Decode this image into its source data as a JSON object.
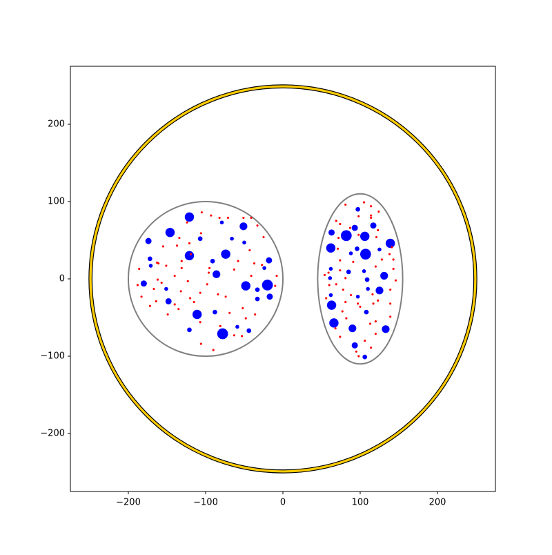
{
  "chart_data": {
    "type": "scatter",
    "xlim": [
      -275,
      275
    ],
    "ylim": [
      -275,
      275
    ],
    "xticks": [
      {
        "value": -200,
        "label": "−200"
      },
      {
        "value": -100,
        "label": "−100"
      },
      0,
      100,
      200
    ],
    "yticks": [
      {
        "value": -200,
        "label": "−200"
      },
      {
        "value": -100,
        "label": "−100"
      },
      0,
      100,
      200
    ],
    "shapes": [
      {
        "kind": "ring",
        "center": [
          0,
          0
        ],
        "radii": [
          247,
          251
        ],
        "fill": "#ffcc00",
        "edge": "#000000"
      },
      {
        "kind": "ellipse",
        "center": [
          -100,
          0
        ],
        "width": 200,
        "height": 200,
        "edge": "#808080"
      },
      {
        "kind": "ellipse",
        "center": [
          100,
          0
        ],
        "width": 110,
        "height": 220,
        "edge": "#808080"
      }
    ],
    "series": [
      {
        "color": "#0000ff",
        "x": [
          -121,
          -146,
          -174,
          -172,
          -171,
          -180,
          -151,
          -148,
          -121,
          -107,
          -121,
          -111,
          -91,
          -86,
          -74,
          -79,
          -66,
          -51,
          -50,
          -18,
          -24,
          -20,
          -48,
          -33,
          -33,
          -17,
          -88,
          -59,
          -78,
          -44,
          97,
          63,
          93,
          117,
          82,
          106,
          139,
          62,
          96,
          88,
          107,
          125,
          62,
          85,
          105,
          131,
          61,
          109,
          110,
          125,
          62,
          97,
          63,
          108,
          66,
          90,
          133,
          93,
          106
        ],
        "values": [
          80,
          60,
          49,
          26,
          17,
          -6,
          -13,
          -29,
          30,
          52,
          -66,
          -46,
          23,
          6,
          32,
          73,
          52,
          68,
          47,
          24,
          14,
          -8,
          -9,
          -14,
          -26,
          -23,
          -43,
          -62,
          -71,
          -67,
          90,
          60,
          66,
          69,
          56,
          55,
          46,
          40,
          39,
          33,
          32,
          38,
          13,
          9,
          10,
          4,
          1,
          -1,
          -13,
          -15,
          -21,
          -23,
          -34,
          -43,
          -57,
          -64,
          -65,
          -86,
          -101
        ],
        "sizes": [
          6,
          6,
          4,
          3,
          2.5,
          4,
          2.5,
          4,
          6,
          3,
          3,
          6,
          3,
          5,
          6,
          2.5,
          2.5,
          5,
          2.5,
          4,
          2.5,
          7,
          6,
          3,
          3,
          4,
          3,
          2.5,
          7,
          3,
          3,
          4,
          4,
          4,
          7,
          6,
          6,
          6,
          3,
          2.5,
          7,
          2.5,
          2.5,
          3,
          2.5,
          5,
          2.5,
          3,
          2.5,
          5,
          2.5,
          2.5,
          6,
          3,
          6,
          5,
          5,
          4,
          3
        ]
      },
      {
        "color": "#ff0000",
        "size": 1.4,
        "x": [
          -105,
          -93,
          -82,
          -71,
          -51,
          -41,
          -33,
          -124,
          -106,
          -134,
          -121,
          -155,
          -137,
          -119,
          -131,
          -163,
          -95,
          -151,
          -161,
          -131,
          -96,
          -140,
          -123,
          -98,
          -63,
          -58,
          -37,
          -162,
          -167,
          -157,
          -132,
          -120,
          -84,
          -74,
          -107,
          -52,
          -69,
          -107,
          -81,
          -149,
          -135,
          -164,
          -183,
          -172,
          -188,
          -186,
          -140,
          -10,
          -8,
          -41,
          -27,
          -43,
          -25,
          -36,
          -115,
          -63,
          -106,
          -90,
          -48,
          -53,
          81,
          105,
          114,
          124,
          114,
          69,
          98,
          114,
          74,
          87,
          123,
          121,
          72,
          98,
          71,
          141,
          143,
          128,
          138,
          74,
          91,
          120,
          143,
          74,
          59,
          54,
          81,
          69,
          60,
          78,
          88,
          81,
          56,
          116,
          139,
          146,
          123,
          97,
          100,
          117,
          139,
          139,
          120,
          113,
          77,
          82,
          68,
          74,
          120,
          106,
          114,
          95,
          98
        ],
        "values": [
          86,
          82,
          79,
          79,
          79,
          79,
          69,
          73,
          59,
          53,
          46,
          42,
          43,
          32,
          23,
          21,
          14,
          17,
          20,
          14,
          8,
          4,
          -3,
          -7,
          12,
          23,
          20,
          -1,
          -13,
          -5,
          -16,
          -25,
          -20,
          -23,
          -18,
          -38,
          -44,
          -56,
          -61,
          -46,
          -39,
          -29,
          -23,
          -35,
          -8,
          13,
          -33,
          -9,
          4,
          4,
          18,
          37,
          54,
          -46,
          -30,
          -73,
          -84,
          -92,
          -51,
          -74,
          96,
          99,
          94,
          87,
          82,
          75,
          81,
          79,
          71,
          66,
          63,
          54,
          53,
          57,
          39,
          41,
          25,
          25,
          32,
          24,
          22,
          16,
          13,
          11,
          8,
          5,
          1,
          -7,
          -8,
          -14,
          -21,
          -30,
          -25,
          -20,
          -14,
          -2,
          -28,
          -32,
          -36,
          -32,
          -32,
          -49,
          -55,
          -58,
          -42,
          -51,
          -64,
          -75,
          -71,
          -80,
          -89,
          -94,
          -100
        ]
      }
    ]
  }
}
